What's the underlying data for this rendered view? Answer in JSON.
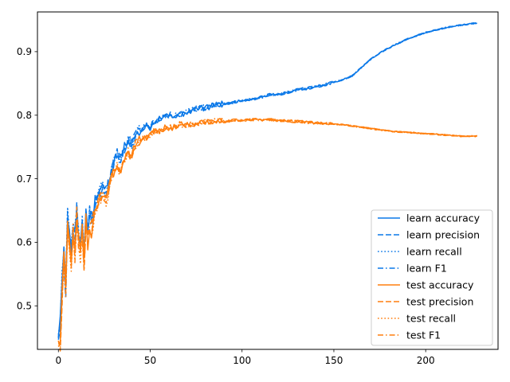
{
  "chart_data": {
    "type": "line",
    "title": "",
    "xlabel": "",
    "ylabel": "",
    "xlim": [
      -11.4,
      239.4
    ],
    "ylim": [
      0.4315,
      0.9625
    ],
    "x_ticks": [
      0,
      50,
      100,
      150,
      200
    ],
    "y_ticks": [
      0.5,
      0.6,
      0.7,
      0.8,
      0.9
    ],
    "grid": false,
    "legend_position": "lower-right",
    "colors": {
      "learn": "#1f77b4",
      "test": "#ff7f0e",
      "learn_draw": "#0a78e8",
      "test_draw": "#ff7f0e"
    },
    "x_start": 0,
    "x_end": 228,
    "learn_accuracy": [
      [
        0,
        0.46
      ],
      [
        1,
        0.475
      ],
      [
        2,
        0.55
      ],
      [
        3,
        0.58
      ],
      [
        4,
        0.53
      ],
      [
        5,
        0.64
      ],
      [
        6,
        0.62
      ],
      [
        7,
        0.59
      ],
      [
        8,
        0.635
      ],
      [
        9,
        0.61
      ],
      [
        10,
        0.655
      ],
      [
        11,
        0.62
      ],
      [
        12,
        0.6
      ],
      [
        13,
        0.63
      ],
      [
        14,
        0.59
      ],
      [
        15,
        0.64
      ],
      [
        16,
        0.62
      ],
      [
        17,
        0.645
      ],
      [
        18,
        0.635
      ],
      [
        19,
        0.65
      ],
      [
        20,
        0.665
      ],
      [
        22,
        0.675
      ],
      [
        24,
        0.69
      ],
      [
        26,
        0.68
      ],
      [
        28,
        0.7
      ],
      [
        30,
        0.725
      ],
      [
        32,
        0.74
      ],
      [
        34,
        0.73
      ],
      [
        36,
        0.75
      ],
      [
        38,
        0.76
      ],
      [
        40,
        0.755
      ],
      [
        42,
        0.77
      ],
      [
        44,
        0.775
      ],
      [
        46,
        0.78
      ],
      [
        48,
        0.785
      ],
      [
        50,
        0.78
      ],
      [
        52,
        0.79
      ],
      [
        55,
        0.795
      ],
      [
        58,
        0.8
      ],
      [
        62,
        0.8
      ],
      [
        66,
        0.8
      ],
      [
        70,
        0.805
      ],
      [
        75,
        0.81
      ],
      [
        80,
        0.812
      ],
      [
        85,
        0.815
      ],
      [
        90,
        0.818
      ],
      [
        95,
        0.82
      ],
      [
        100,
        0.823
      ],
      [
        105,
        0.825
      ],
      [
        110,
        0.828
      ],
      [
        115,
        0.832
      ],
      [
        120,
        0.833
      ],
      [
        125,
        0.836
      ],
      [
        130,
        0.84
      ],
      [
        135,
        0.842
      ],
      [
        140,
        0.845
      ],
      [
        145,
        0.848
      ],
      [
        150,
        0.852
      ],
      [
        155,
        0.856
      ],
      [
        160,
        0.862
      ],
      [
        165,
        0.875
      ],
      [
        170,
        0.888
      ],
      [
        175,
        0.898
      ],
      [
        180,
        0.906
      ],
      [
        185,
        0.913
      ],
      [
        190,
        0.92
      ],
      [
        195,
        0.925
      ],
      [
        200,
        0.93
      ],
      [
        205,
        0.934
      ],
      [
        210,
        0.937
      ],
      [
        215,
        0.94
      ],
      [
        220,
        0.942
      ],
      [
        225,
        0.944
      ],
      [
        228,
        0.945
      ]
    ],
    "test_accuracy": [
      [
        0,
        0.45
      ],
      [
        1,
        0.44
      ],
      [
        2,
        0.51
      ],
      [
        3,
        0.575
      ],
      [
        4,
        0.535
      ],
      [
        5,
        0.62
      ],
      [
        6,
        0.6
      ],
      [
        7,
        0.575
      ],
      [
        8,
        0.62
      ],
      [
        9,
        0.58
      ],
      [
        10,
        0.64
      ],
      [
        11,
        0.6
      ],
      [
        12,
        0.585
      ],
      [
        13,
        0.62
      ],
      [
        14,
        0.57
      ],
      [
        15,
        0.63
      ],
      [
        16,
        0.6
      ],
      [
        17,
        0.625
      ],
      [
        18,
        0.615
      ],
      [
        19,
        0.64
      ],
      [
        20,
        0.65
      ],
      [
        22,
        0.665
      ],
      [
        24,
        0.675
      ],
      [
        26,
        0.665
      ],
      [
        28,
        0.69
      ],
      [
        30,
        0.71
      ],
      [
        32,
        0.72
      ],
      [
        34,
        0.715
      ],
      [
        36,
        0.735
      ],
      [
        38,
        0.74
      ],
      [
        40,
        0.74
      ],
      [
        42,
        0.755
      ],
      [
        44,
        0.76
      ],
      [
        46,
        0.765
      ],
      [
        48,
        0.765
      ],
      [
        50,
        0.77
      ],
      [
        52,
        0.775
      ],
      [
        55,
        0.775
      ],
      [
        58,
        0.78
      ],
      [
        62,
        0.78
      ],
      [
        66,
        0.785
      ],
      [
        70,
        0.785
      ],
      [
        75,
        0.785
      ],
      [
        80,
        0.79
      ],
      [
        85,
        0.79
      ],
      [
        90,
        0.79
      ],
      [
        95,
        0.792
      ],
      [
        100,
        0.792
      ],
      [
        105,
        0.793
      ],
      [
        110,
        0.793
      ],
      [
        115,
        0.793
      ],
      [
        120,
        0.792
      ],
      [
        125,
        0.791
      ],
      [
        130,
        0.79
      ],
      [
        135,
        0.789
      ],
      [
        140,
        0.788
      ],
      [
        145,
        0.787
      ],
      [
        150,
        0.786
      ],
      [
        155,
        0.785
      ],
      [
        160,
        0.783
      ],
      [
        165,
        0.781
      ],
      [
        170,
        0.779
      ],
      [
        175,
        0.777
      ],
      [
        180,
        0.775
      ],
      [
        185,
        0.774
      ],
      [
        190,
        0.773
      ],
      [
        195,
        0.772
      ],
      [
        200,
        0.771
      ],
      [
        205,
        0.77
      ],
      [
        210,
        0.769
      ],
      [
        215,
        0.768
      ],
      [
        220,
        0.767
      ],
      [
        225,
        0.767
      ],
      [
        228,
        0.767
      ]
    ],
    "series": [
      {
        "name": "learn accuracy",
        "group": "learn",
        "dash": "solid"
      },
      {
        "name": "learn precision",
        "group": "learn",
        "dash": "dashed"
      },
      {
        "name": "learn recall",
        "group": "learn",
        "dash": "dotted"
      },
      {
        "name": "learn F1",
        "group": "learn",
        "dash": "dashdot"
      },
      {
        "name": "test accuracy",
        "group": "test",
        "dash": "solid"
      },
      {
        "name": "test precision",
        "group": "test",
        "dash": "dashed"
      },
      {
        "name": "test recall",
        "group": "test",
        "dash": "dotted"
      },
      {
        "name": "test F1",
        "group": "test",
        "dash": "dashdot"
      }
    ]
  }
}
